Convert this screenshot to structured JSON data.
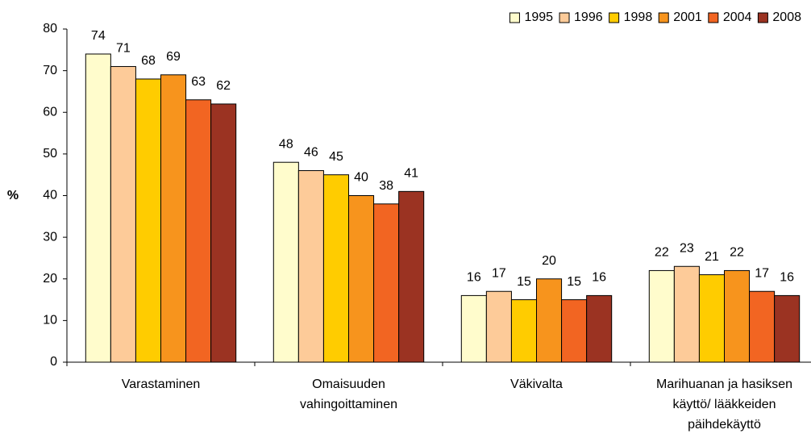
{
  "chart_data": {
    "type": "bar",
    "y_label": "%",
    "categories": [
      [
        "Varastaminen"
      ],
      [
        "Omaisuuden",
        "vahingoittaminen"
      ],
      [
        "Väkivalta"
      ],
      [
        "Marihuanan ja hasiksen",
        "käyttö/ lääkkeiden",
        "päihdekäyttö"
      ]
    ],
    "series": [
      {
        "name": "1995",
        "color": "#FFFCCC",
        "values": [
          74,
          48,
          16,
          22
        ]
      },
      {
        "name": "1996",
        "color": "#FDCB99",
        "values": [
          71,
          46,
          17,
          23
        ]
      },
      {
        "name": "1998",
        "color": "#FFCC00",
        "values": [
          68,
          45,
          15,
          21
        ]
      },
      {
        "name": "2001",
        "color": "#F7941D",
        "values": [
          69,
          40,
          20,
          22
        ]
      },
      {
        "name": "2004",
        "color": "#F26522",
        "values": [
          63,
          38,
          15,
          17
        ]
      },
      {
        "name": "2008",
        "color": "#9B3322",
        "values": [
          62,
          41,
          16,
          16
        ]
      }
    ],
    "ylim": [
      0,
      80
    ],
    "yticks": [
      0,
      10,
      20,
      30,
      40,
      50,
      60,
      70,
      80
    ],
    "legend": "top-right",
    "grid": false
  }
}
